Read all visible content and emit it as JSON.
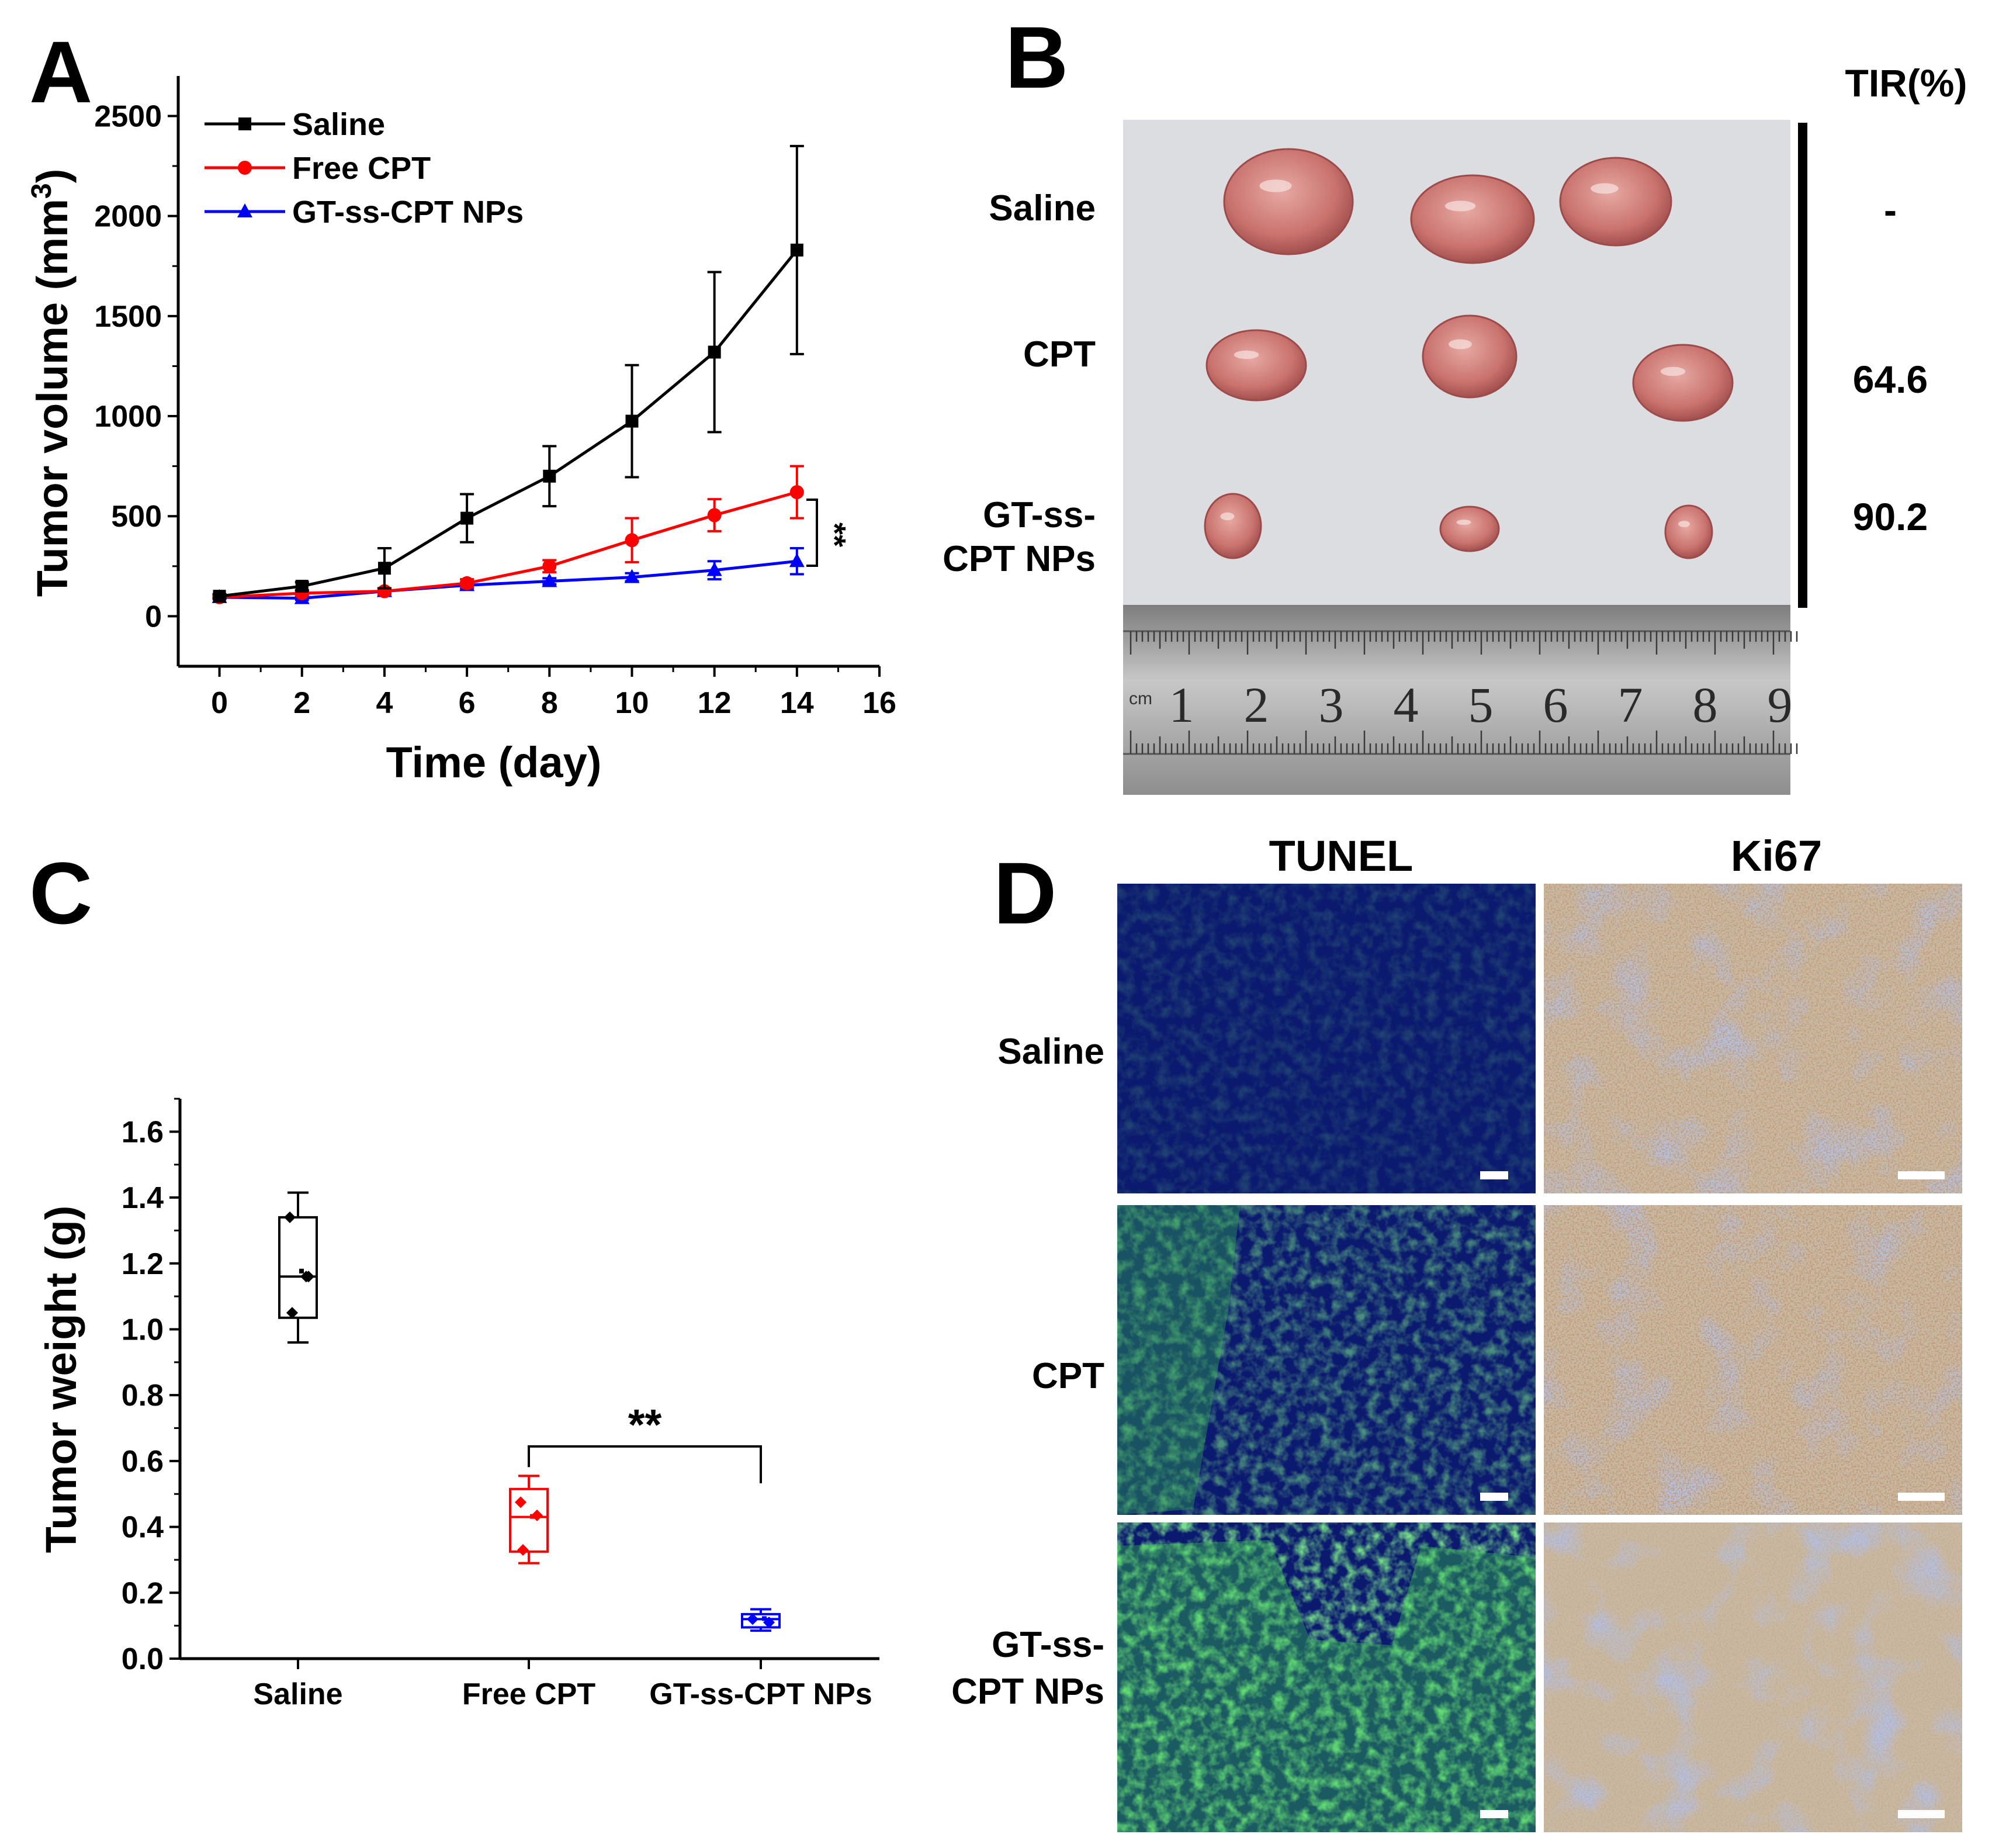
{
  "panels": {
    "a": "A",
    "b": "B",
    "c": "C",
    "d": "D"
  },
  "chart_data": [
    {
      "type": "line",
      "xlabel": "Time (day)",
      "ylabel": "Tumor volume (mm3)",
      "ylabel_main": "Tumor volume (mm",
      "ylabel_sup": "3",
      "ylabel_close": ")",
      "xlim": [
        -1,
        16
      ],
      "ylim": [
        -250,
        2700
      ],
      "xticks": [
        0,
        2,
        4,
        6,
        8,
        10,
        12,
        14,
        16
      ],
      "yticks": [
        0,
        500,
        1000,
        1500,
        2000,
        2500
      ],
      "x": [
        0,
        2,
        4,
        6,
        8,
        10,
        12,
        14
      ],
      "legend_position": "top-left",
      "significance": "**",
      "series": [
        {
          "name": "Saline",
          "color": "#000000",
          "marker": "square",
          "values": [
            100,
            150,
            240,
            490,
            700,
            975,
            1320,
            1830
          ],
          "errors": [
            10,
            20,
            100,
            120,
            150,
            280,
            400,
            520
          ]
        },
        {
          "name": "Free CPT",
          "color": "#ff0000",
          "marker": "circle",
          "values": [
            95,
            115,
            125,
            165,
            250,
            380,
            505,
            620
          ],
          "errors": [
            8,
            10,
            15,
            20,
            30,
            110,
            80,
            130
          ]
        },
        {
          "name": "GT-ss-CPT NPs",
          "color": "#0000ff",
          "marker": "triangle",
          "values": [
            95,
            90,
            125,
            155,
            175,
            195,
            230,
            275
          ],
          "errors": [
            8,
            8,
            10,
            15,
            15,
            20,
            45,
            65
          ]
        }
      ]
    },
    {
      "type": "box",
      "ylabel": "Tumor weight (g)",
      "ylim": [
        0,
        1.7
      ],
      "yticks": [
        0.0,
        0.2,
        0.4,
        0.6,
        0.8,
        1.0,
        1.2,
        1.4,
        1.6
      ],
      "ytick_labels": [
        "0.0",
        "0.2",
        "0.4",
        "0.6",
        "0.8",
        "1.0",
        "1.2",
        "1.4",
        "1.6"
      ],
      "significance": "**",
      "groups": [
        {
          "name": "Saline",
          "color": "#000000",
          "min": 0.96,
          "q1": 1.035,
          "median": 1.16,
          "q3": 1.34,
          "max": 1.415,
          "mean": 1.175,
          "points": [
            1.34,
            1.16,
            1.05,
            1.16
          ]
        },
        {
          "name": "Free CPT",
          "color": "#ff0000",
          "min": 0.29,
          "q1": 0.325,
          "median": 0.43,
          "q3": 0.515,
          "max": 0.555,
          "mean": 0.43,
          "points": [
            0.475,
            0.435,
            0.33
          ]
        },
        {
          "name": "GT-ss-CPT NPs",
          "color": "#0000ff",
          "min": 0.085,
          "q1": 0.095,
          "median": 0.12,
          "q3": 0.135,
          "max": 0.15,
          "mean": 0.12,
          "points": [
            0.12,
            0.11
          ]
        }
      ]
    }
  ],
  "panel_b": {
    "rows": [
      "Saline",
      "CPT",
      "GT-ss-CPT NPs"
    ],
    "row_label_lines": [
      [
        "Saline"
      ],
      [
        "CPT"
      ],
      [
        "GT-ss-",
        "CPT NPs"
      ]
    ],
    "tir_title": "TIR(%)",
    "tir_values": [
      "-",
      "64.6",
      "90.2"
    ],
    "ruler_unit": "cm",
    "ruler_numbers": [
      "1",
      "2",
      "3",
      "4",
      "5",
      "6",
      "7",
      "8",
      "9"
    ]
  },
  "panel_d": {
    "columns": [
      "TUNEL",
      "Ki67"
    ],
    "row_label_lines": [
      [
        "Saline"
      ],
      [
        "CPT"
      ],
      [
        "GT-ss-",
        "CPT NPs"
      ]
    ],
    "colors": {
      "tunel_bg": "#0b1a6e",
      "tunel_green": "#3bd34a",
      "ki67_bg": "#c9b9a3",
      "ki67_blue": "#6f84c0",
      "ki67_brown": "#8a5a34"
    }
  }
}
